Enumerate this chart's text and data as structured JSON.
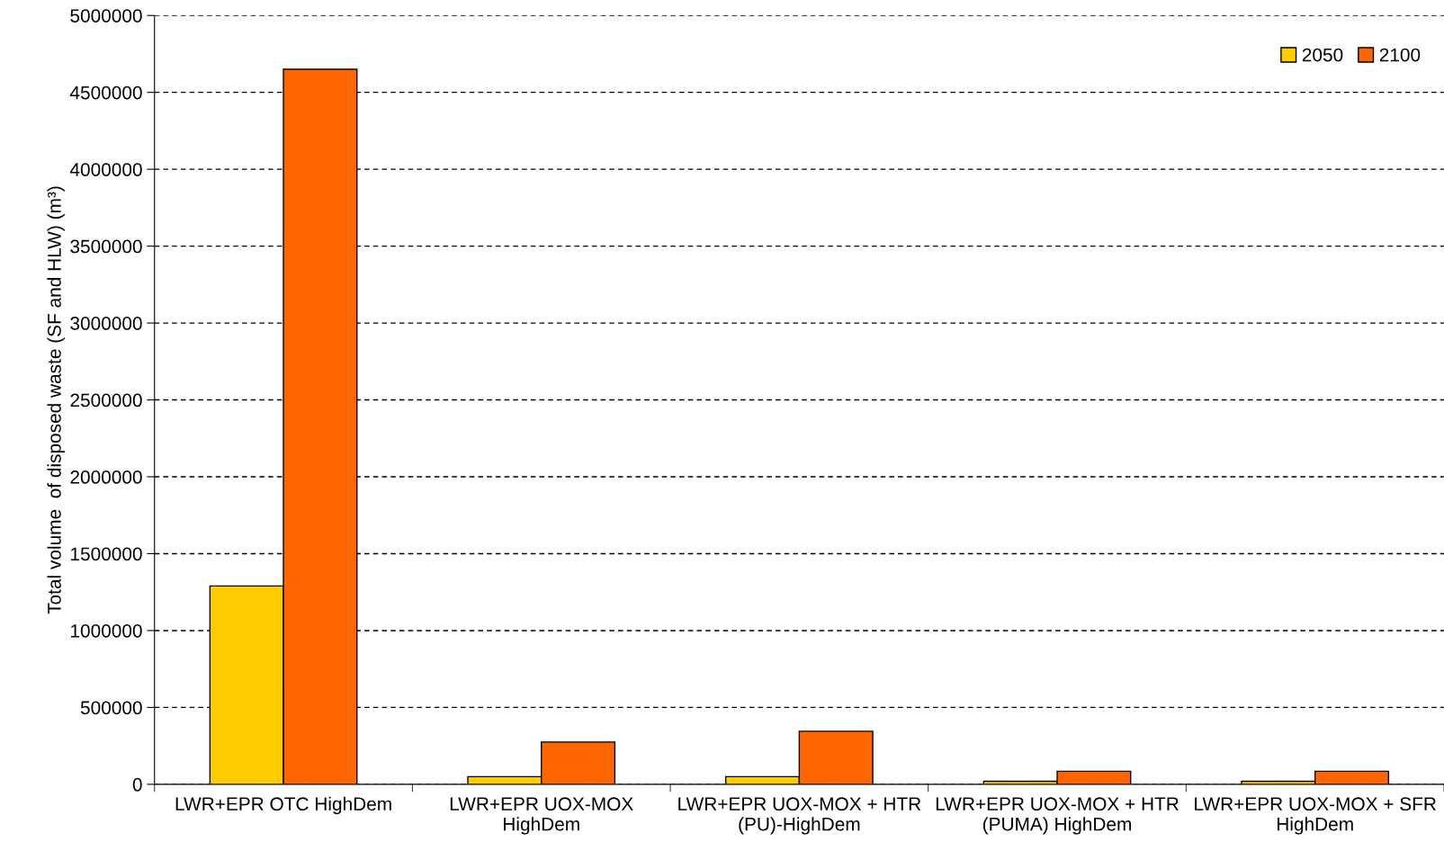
{
  "chart_data": {
    "type": "bar",
    "ylabel": "Total volume  of disposed waste (SF and HLW) (m³)",
    "categories": [
      "LWR+EPR OTC HighDem",
      "LWR+EPR UOX-MOX\nHighDem",
      "LWR+EPR UOX-MOX + HTR\n(PU)-HighDem",
      "LWR+EPR UOX-MOX + HTR\n(PUMA) HighDem",
      "LWR+EPR UOX-MOX + SFR\nHighDem"
    ],
    "series": [
      {
        "name": "2050",
        "color": "#ffcc00",
        "values": [
          1290000,
          50000,
          50000,
          20000,
          20000
        ]
      },
      {
        "name": "2100",
        "color": "#ff6600",
        "values": [
          4650000,
          275000,
          345000,
          85000,
          85000
        ]
      }
    ],
    "ylim": [
      0,
      5000000
    ],
    "yticks": [
      0,
      500000,
      1000000,
      1500000,
      2000000,
      2500000,
      3000000,
      3500000,
      4000000,
      4500000,
      5000000
    ],
    "grid": "y",
    "legend": "top right"
  }
}
